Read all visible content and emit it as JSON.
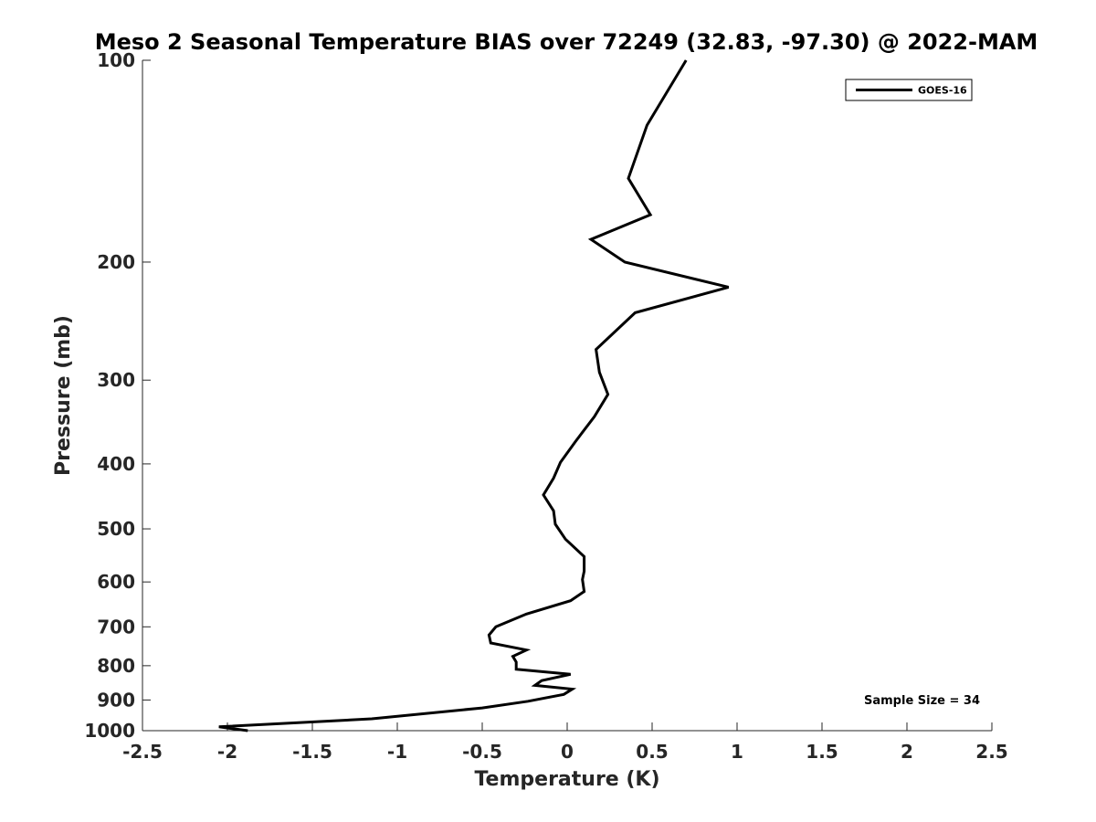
{
  "chart_data": {
    "type": "line",
    "title": "Meso 2 Seasonal Temperature BIAS over 72249 (32.83, -97.30) @ 2022-MAM",
    "xlabel": "Temperature (K)",
    "ylabel": "Pressure (mb)",
    "xlim": [
      -2.5,
      2.5
    ],
    "ylim": [
      100,
      1000
    ],
    "yscale": "log",
    "y_reversed": true,
    "grid": false,
    "x_ticks": [
      -2.5,
      -2,
      -1.5,
      -1,
      -0.5,
      0,
      0.5,
      1,
      1.5,
      2,
      2.5
    ],
    "x_tick_labels": [
      "-2.5",
      "-2",
      "-1.5",
      "-1",
      "-0.5",
      "0",
      "0.5",
      "1",
      "1.5",
      "2",
      "2.5"
    ],
    "y_ticks": [
      100,
      200,
      300,
      400,
      500,
      600,
      700,
      800,
      900,
      1000
    ],
    "y_tick_labels": [
      "100",
      "200",
      "300",
      "400",
      "500",
      "600",
      "700",
      "800",
      "900",
      "1000"
    ],
    "legend_position": "top-right",
    "annotation": "Sample Size = 34",
    "series": [
      {
        "name": "GOES-16",
        "color": "#000000",
        "x": [
          0.7,
          0.47,
          0.36,
          0.49,
          0.14,
          0.34,
          0.95,
          0.4,
          0.17,
          0.19,
          0.24,
          0.16,
          0.05,
          -0.04,
          -0.08,
          -0.14,
          -0.08,
          -0.07,
          -0.01,
          0.1,
          0.1,
          0.09,
          0.1,
          0.02,
          -0.24,
          -0.42,
          -0.46,
          -0.45,
          -0.24,
          -0.32,
          -0.3,
          -0.3,
          0.02,
          -0.15,
          -0.19,
          0.03,
          -0.02,
          -0.23,
          -0.5,
          -1.15,
          -2.05,
          -1.88
        ],
        "y": [
          100,
          125,
          150,
          170,
          185,
          200,
          218,
          238,
          270,
          292,
          315,
          340,
          370,
          398,
          420,
          445,
          470,
          492,
          518,
          550,
          578,
          595,
          620,
          640,
          670,
          700,
          720,
          740,
          758,
          775,
          790,
          810,
          824,
          842,
          856,
          867,
          883,
          904,
          925,
          960,
          987,
          1000
        ]
      }
    ]
  }
}
